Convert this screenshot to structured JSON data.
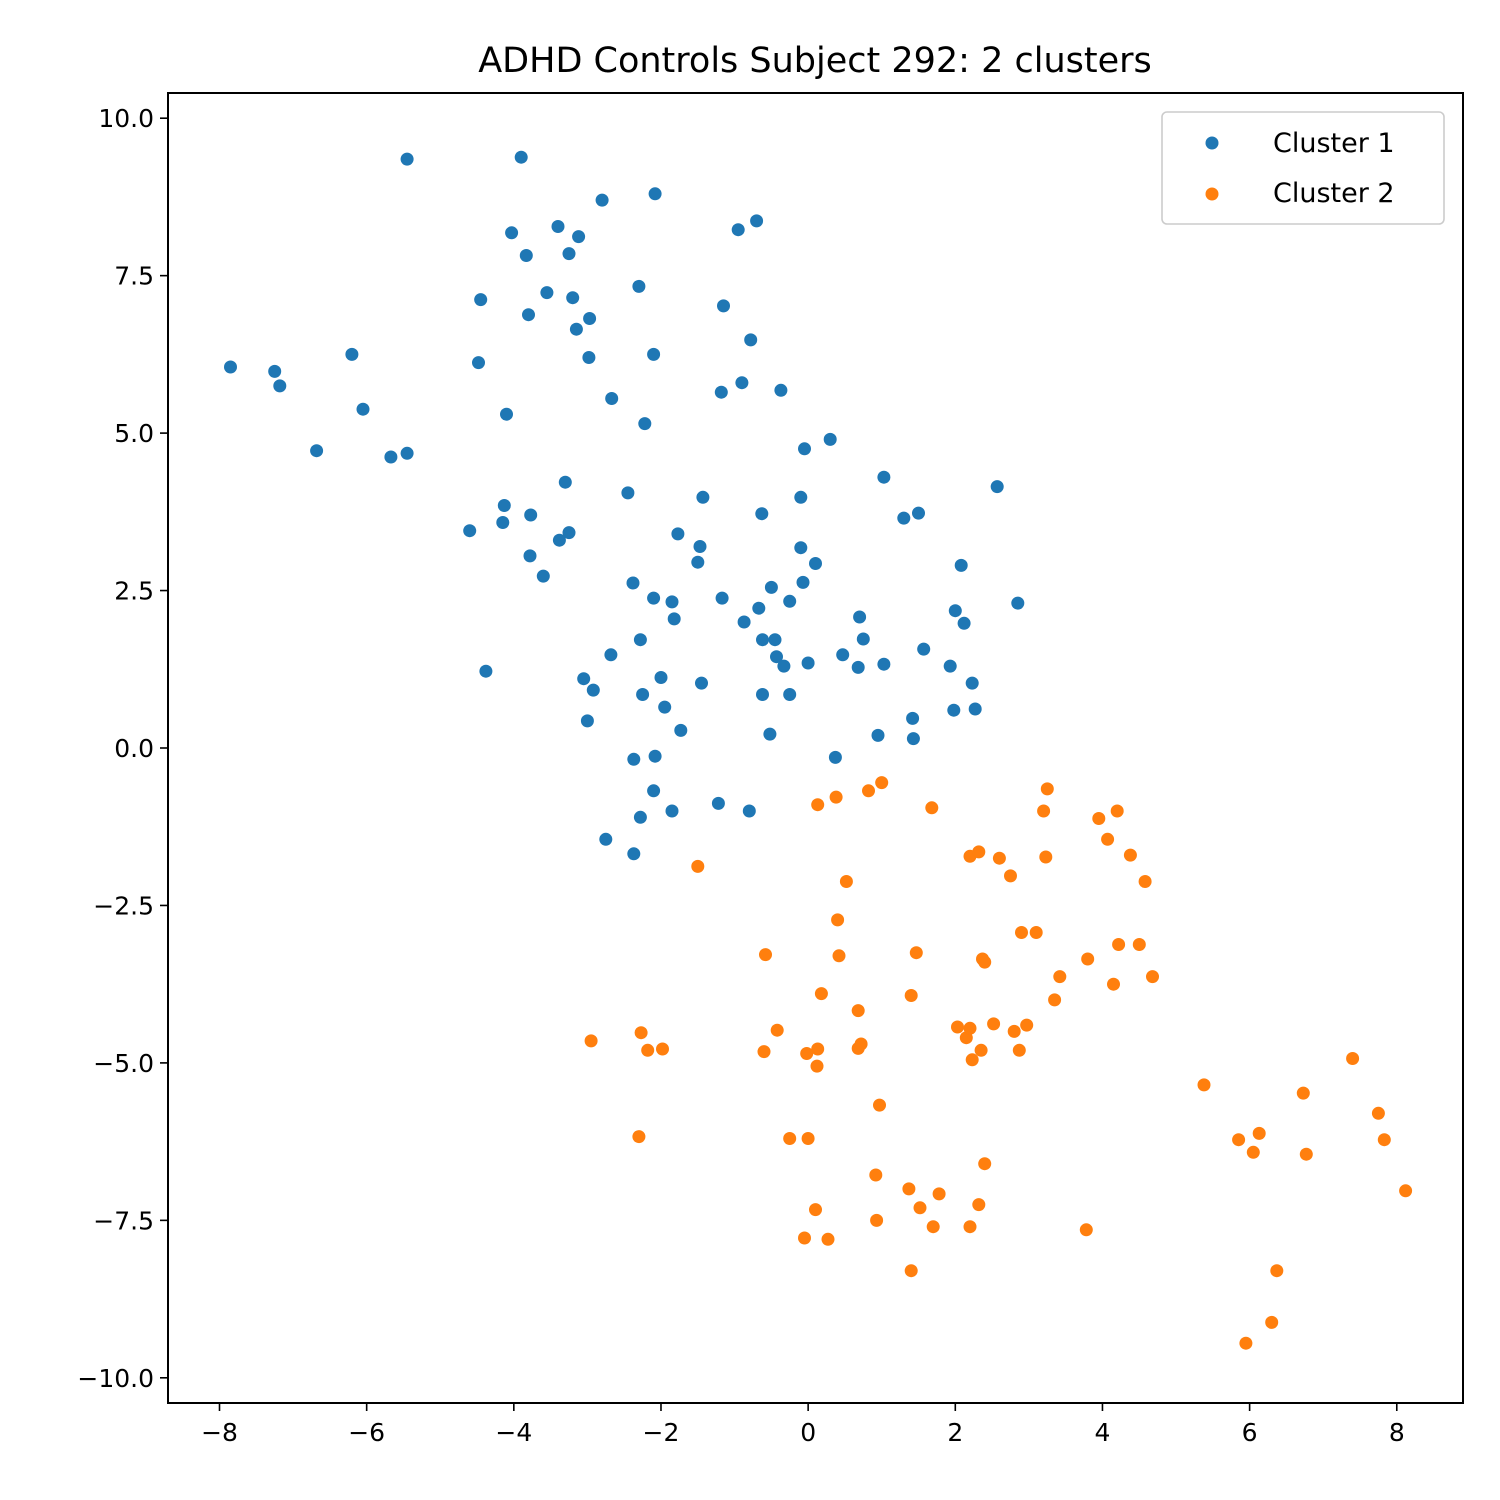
{
  "chart_data": {
    "type": "scatter",
    "title": "ADHD Controls Subject 292: 2 clusters",
    "xlabel": "",
    "ylabel": "",
    "xlim": [
      -8.7,
      8.9
    ],
    "ylim": [
      -10.4,
      10.4
    ],
    "x_ticks": [
      -8,
      -6,
      -4,
      -2,
      0,
      2,
      4,
      6,
      8
    ],
    "x_tick_labels": [
      "−8",
      "−6",
      "−4",
      "−2",
      "0",
      "2",
      "4",
      "6",
      "8"
    ],
    "y_ticks": [
      -10,
      -7.5,
      -5,
      -2.5,
      0,
      2.5,
      5,
      7.5,
      10
    ],
    "y_tick_labels": [
      "−10.0",
      "−7.5",
      "−5.0",
      "−2.5",
      "0.0",
      "2.5",
      "5.0",
      "7.5",
      "10.0"
    ],
    "grid": false,
    "legend_position": "top-right",
    "series": [
      {
        "name": "Cluster 1",
        "color": "#1f77b4",
        "points": [
          [
            -7.85,
            6.05
          ],
          [
            -7.25,
            5.98
          ],
          [
            -7.18,
            5.75
          ],
          [
            -6.68,
            4.72
          ],
          [
            -6.2,
            6.25
          ],
          [
            -6.05,
            5.38
          ],
          [
            -5.67,
            4.62
          ],
          [
            -5.45,
            4.68
          ],
          [
            -5.45,
            9.35
          ],
          [
            -4.6,
            3.45
          ],
          [
            -4.48,
            6.12
          ],
          [
            -4.45,
            7.12
          ],
          [
            -4.38,
            1.22
          ],
          [
            -4.15,
            3.58
          ],
          [
            -4.13,
            3.85
          ],
          [
            -4.1,
            5.3
          ],
          [
            -4.03,
            8.18
          ],
          [
            -3.9,
            9.38
          ],
          [
            -3.83,
            7.82
          ],
          [
            -3.8,
            6.88
          ],
          [
            -3.78,
            3.05
          ],
          [
            -3.77,
            3.7
          ],
          [
            -3.6,
            2.73
          ],
          [
            -3.55,
            7.23
          ],
          [
            -3.4,
            8.28
          ],
          [
            -3.38,
            3.3
          ],
          [
            -3.3,
            4.22
          ],
          [
            -3.25,
            3.42
          ],
          [
            -3.25,
            7.85
          ],
          [
            -3.2,
            7.15
          ],
          [
            -3.15,
            6.65
          ],
          [
            -3.12,
            8.12
          ],
          [
            -3.05,
            1.1
          ],
          [
            -3.0,
            0.43
          ],
          [
            -2.98,
            6.2
          ],
          [
            -2.97,
            6.82
          ],
          [
            -2.92,
            0.92
          ],
          [
            -2.8,
            8.7
          ],
          [
            -2.75,
            -1.45
          ],
          [
            -2.68,
            1.48
          ],
          [
            -2.67,
            5.55
          ],
          [
            -2.45,
            4.05
          ],
          [
            -2.38,
            2.62
          ],
          [
            -2.37,
            -0.18
          ],
          [
            -2.37,
            -1.68
          ],
          [
            -2.3,
            7.33
          ],
          [
            -2.28,
            1.72
          ],
          [
            -2.28,
            -1.1
          ],
          [
            -2.25,
            0.85
          ],
          [
            -2.22,
            5.15
          ],
          [
            -2.1,
            2.38
          ],
          [
            -2.1,
            6.25
          ],
          [
            -2.08,
            8.8
          ],
          [
            -2.08,
            -0.13
          ],
          [
            -2.1,
            -0.68
          ],
          [
            -2.0,
            1.12
          ],
          [
            -1.95,
            0.65
          ],
          [
            -1.85,
            2.32
          ],
          [
            -1.85,
            -1.0
          ],
          [
            -1.82,
            2.05
          ],
          [
            -1.77,
            3.4
          ],
          [
            -1.73,
            0.28
          ],
          [
            -1.5,
            2.95
          ],
          [
            -1.47,
            3.2
          ],
          [
            -1.45,
            1.03
          ],
          [
            -1.43,
            3.98
          ],
          [
            -1.22,
            -0.88
          ],
          [
            -1.18,
            5.65
          ],
          [
            -1.17,
            2.38
          ],
          [
            -1.15,
            7.02
          ],
          [
            -0.95,
            8.23
          ],
          [
            -0.9,
            5.8
          ],
          [
            -0.87,
            2.0
          ],
          [
            -0.8,
            -1.0
          ],
          [
            -0.78,
            6.48
          ],
          [
            -0.7,
            8.37
          ],
          [
            -0.67,
            2.22
          ],
          [
            -0.63,
            3.72
          ],
          [
            -0.62,
            1.72
          ],
          [
            -0.62,
            0.85
          ],
          [
            -0.52,
            0.22
          ],
          [
            -0.5,
            2.55
          ],
          [
            -0.45,
            1.72
          ],
          [
            -0.43,
            1.45
          ],
          [
            -0.37,
            5.68
          ],
          [
            -0.33,
            1.3
          ],
          [
            -0.25,
            2.33
          ],
          [
            -0.25,
            0.85
          ],
          [
            -0.1,
            3.98
          ],
          [
            -0.1,
            3.18
          ],
          [
            -0.07,
            2.63
          ],
          [
            -0.05,
            4.75
          ],
          [
            0.0,
            1.35
          ],
          [
            0.1,
            2.93
          ],
          [
            0.3,
            4.9
          ],
          [
            0.37,
            -0.15
          ],
          [
            0.47,
            1.48
          ],
          [
            0.68,
            1.28
          ],
          [
            0.7,
            2.08
          ],
          [
            0.75,
            1.73
          ],
          [
            0.95,
            0.2
          ],
          [
            1.03,
            1.33
          ],
          [
            1.03,
            4.3
          ],
          [
            1.3,
            3.65
          ],
          [
            1.42,
            0.47
          ],
          [
            1.43,
            0.15
          ],
          [
            1.5,
            3.73
          ],
          [
            1.57,
            1.57
          ],
          [
            1.93,
            1.3
          ],
          [
            1.98,
            0.6
          ],
          [
            2.0,
            2.18
          ],
          [
            2.08,
            2.9
          ],
          [
            2.12,
            1.98
          ],
          [
            2.23,
            1.03
          ],
          [
            2.27,
            0.62
          ],
          [
            2.57,
            4.15
          ],
          [
            2.85,
            2.3
          ]
        ]
      },
      {
        "name": "Cluster 2",
        "color": "#ff7f0e",
        "points": [
          [
            -2.95,
            -4.65
          ],
          [
            -2.27,
            -4.52
          ],
          [
            -2.3,
            -6.17
          ],
          [
            -2.18,
            -4.8
          ],
          [
            -1.98,
            -4.78
          ],
          [
            -1.5,
            -1.88
          ],
          [
            -0.58,
            -3.28
          ],
          [
            -0.6,
            -4.82
          ],
          [
            -0.42,
            -4.48
          ],
          [
            -0.25,
            -6.2
          ],
          [
            -0.05,
            -7.78
          ],
          [
            0.0,
            -6.2
          ],
          [
            -0.02,
            -4.85
          ],
          [
            0.1,
            -7.33
          ],
          [
            0.12,
            -5.05
          ],
          [
            0.13,
            -4.78
          ],
          [
            0.13,
            -0.9
          ],
          [
            0.18,
            -3.9
          ],
          [
            0.38,
            -0.78
          ],
          [
            0.4,
            -2.73
          ],
          [
            0.42,
            -3.3
          ],
          [
            0.52,
            -2.12
          ],
          [
            0.27,
            -7.8
          ],
          [
            0.68,
            -4.17
          ],
          [
            0.68,
            -4.77
          ],
          [
            0.72,
            -4.7
          ],
          [
            0.82,
            -0.68
          ],
          [
            0.92,
            -6.78
          ],
          [
            0.93,
            -7.5
          ],
          [
            0.97,
            -5.67
          ],
          [
            1.0,
            -0.55
          ],
          [
            1.37,
            -7.0
          ],
          [
            1.4,
            -8.3
          ],
          [
            1.4,
            -3.93
          ],
          [
            1.47,
            -3.25
          ],
          [
            1.52,
            -7.3
          ],
          [
            1.68,
            -0.95
          ],
          [
            1.7,
            -7.6
          ],
          [
            1.78,
            -7.08
          ],
          [
            2.03,
            -4.43
          ],
          [
            2.15,
            -4.6
          ],
          [
            2.2,
            -1.72
          ],
          [
            2.2,
            -4.45
          ],
          [
            2.2,
            -7.6
          ],
          [
            2.23,
            -4.95
          ],
          [
            2.32,
            -1.65
          ],
          [
            2.32,
            -7.25
          ],
          [
            2.35,
            -4.8
          ],
          [
            2.37,
            -3.35
          ],
          [
            2.4,
            -3.4
          ],
          [
            2.4,
            -6.6
          ],
          [
            2.52,
            -4.38
          ],
          [
            2.6,
            -1.75
          ],
          [
            2.75,
            -2.03
          ],
          [
            2.8,
            -4.5
          ],
          [
            2.87,
            -4.8
          ],
          [
            2.9,
            -2.93
          ],
          [
            2.97,
            -4.4
          ],
          [
            3.1,
            -2.93
          ],
          [
            3.2,
            -1.0
          ],
          [
            3.23,
            -1.73
          ],
          [
            3.25,
            -0.65
          ],
          [
            3.35,
            -4.0
          ],
          [
            3.42,
            -3.63
          ],
          [
            3.78,
            -7.65
          ],
          [
            3.8,
            -3.35
          ],
          [
            3.95,
            -1.12
          ],
          [
            4.07,
            -1.45
          ],
          [
            4.15,
            -3.75
          ],
          [
            4.2,
            -1.0
          ],
          [
            4.22,
            -3.12
          ],
          [
            4.38,
            -1.7
          ],
          [
            4.5,
            -3.12
          ],
          [
            4.58,
            -2.12
          ],
          [
            4.68,
            -3.63
          ],
          [
            5.38,
            -5.35
          ],
          [
            5.85,
            -6.22
          ],
          [
            5.95,
            -9.45
          ],
          [
            6.05,
            -6.42
          ],
          [
            6.13,
            -6.12
          ],
          [
            6.3,
            -9.12
          ],
          [
            6.37,
            -8.3
          ],
          [
            6.73,
            -5.48
          ],
          [
            6.77,
            -6.45
          ],
          [
            7.4,
            -4.93
          ],
          [
            7.75,
            -5.8
          ],
          [
            7.83,
            -6.22
          ],
          [
            8.12,
            -7.03
          ]
        ]
      }
    ]
  }
}
